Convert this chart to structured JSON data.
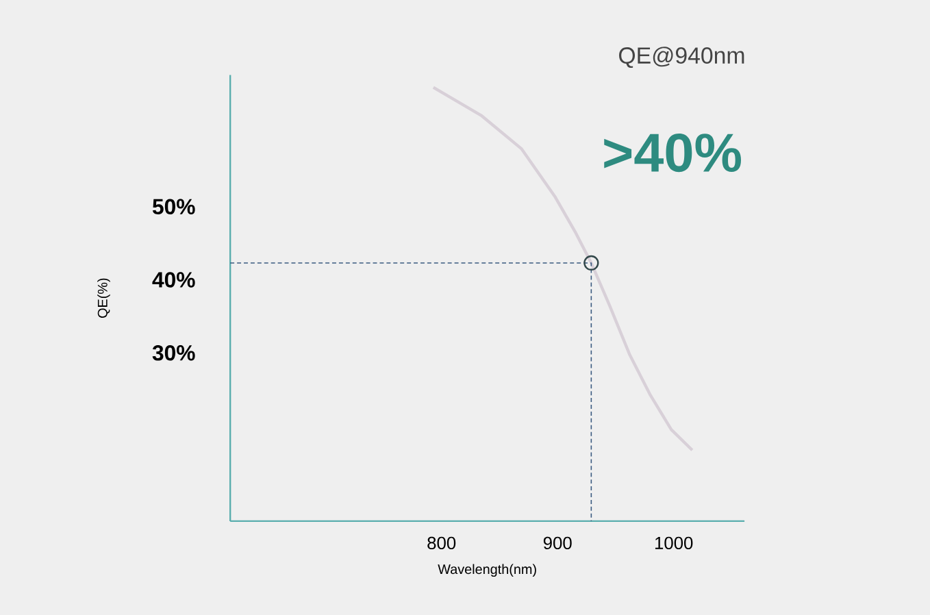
{
  "chart_data": {
    "type": "line",
    "title": "QE@940nm",
    "subtitle": ">40%",
    "xlabel": "Wavelength(nm)",
    "ylabel": "QE(%)",
    "xlim": [
      618,
      1061
    ],
    "ylim": [
      7,
      68
    ],
    "xticks": [
      800,
      900,
      1000
    ],
    "yticks": [
      {
        "value": 30,
        "label": "30%"
      },
      {
        "value": 40,
        "label": "40%"
      },
      {
        "value": 50,
        "label": "50%"
      }
    ],
    "series": [
      {
        "color": "#d8d0d8",
        "x": [
          793,
          834,
          869,
          898,
          915,
          929,
          945,
          962,
          980,
          998,
          1016
        ],
        "values": [
          66.3,
          62.5,
          57.9,
          51.3,
          46.6,
          42.3,
          36.4,
          29.8,
          24.2,
          19.5,
          16.7
        ]
      },
      {
        "color": "#3a5a80",
        "line_style": "dashed",
        "x": [
          618,
          929,
          929
        ],
        "values": [
          42.3,
          42.3,
          7
        ]
      },
      {
        "type": "scatter",
        "color": "#33484a",
        "marker": "circle",
        "x": [
          929
        ],
        "values": [
          42.3
        ]
      }
    ]
  }
}
